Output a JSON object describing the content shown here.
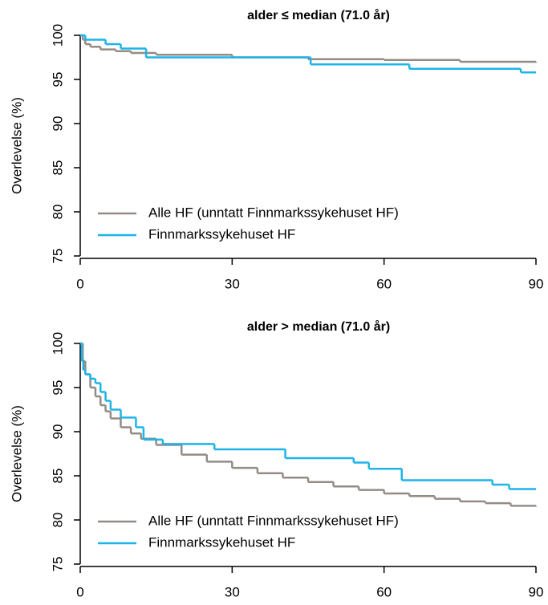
{
  "chart_data": [
    {
      "type": "step",
      "title": "alder ≤ median (71.0 år)",
      "ylabel": "Overlevelse (%)",
      "xlim": [
        0,
        90
      ],
      "xticks": [
        0,
        30,
        60,
        90
      ],
      "ylim": [
        75,
        100
      ],
      "yticks": [
        75,
        80,
        85,
        90,
        95,
        100
      ],
      "legend": "bottom-left",
      "series": [
        {
          "name": "Alle HF (unntatt Finnmarkssykehuset HF)",
          "color": "#958b85",
          "x": [
            0,
            0.5,
            1,
            2,
            4,
            7,
            10,
            15,
            30,
            45,
            60,
            75,
            90
          ],
          "values": [
            100,
            99.5,
            99.0,
            98.7,
            98.4,
            98.2,
            98.0,
            97.8,
            97.5,
            97.3,
            97.2,
            97.0,
            96.9
          ]
        },
        {
          "name": "Finnmarkssykehuset HF",
          "color": "#1db4e8",
          "x": [
            0,
            1,
            5,
            8,
            13,
            45.5,
            65,
            87,
            90
          ],
          "values": [
            100,
            99.5,
            99.0,
            98.5,
            97.5,
            96.7,
            96.2,
            95.8,
            95.8
          ]
        }
      ]
    },
    {
      "type": "step",
      "title": "alder > median (71.0 år)",
      "ylabel": "Overlevelse (%)",
      "xlim": [
        0,
        90
      ],
      "xticks": [
        0,
        30,
        60,
        90
      ],
      "ylim": [
        75,
        100
      ],
      "yticks": [
        75,
        80,
        85,
        90,
        95,
        100
      ],
      "legend": "bottom-left",
      "series": [
        {
          "name": "Alle HF (unntatt Finnmarkssykehuset HF)",
          "color": "#958b85",
          "x": [
            0,
            0.5,
            1,
            2,
            3,
            4,
            5,
            6,
            8,
            10,
            12,
            15,
            20,
            25,
            30,
            35,
            40,
            45,
            50,
            55,
            60,
            65,
            70,
            75,
            80,
            85,
            90
          ],
          "values": [
            100,
            98,
            96.5,
            95,
            94,
            93,
            92.3,
            91.5,
            90.5,
            89.8,
            89.2,
            88.5,
            87.4,
            86.6,
            85.9,
            85.3,
            84.8,
            84.3,
            83.8,
            83.4,
            83.0,
            82.7,
            82.4,
            82.1,
            81.9,
            81.6,
            81.5
          ]
        },
        {
          "name": "Finnmarkssykehuset HF",
          "color": "#1db4e8",
          "x": [
            0,
            0.3,
            0.6,
            1,
            2,
            3,
            4,
            5,
            6,
            8,
            11,
            12.5,
            16.3,
            26.5,
            40.5,
            54,
            57,
            63.5,
            81.4,
            84.7,
            90
          ],
          "values": [
            100,
            98,
            97,
            96.5,
            96,
            95.5,
            94.5,
            93.5,
            92.5,
            91.6,
            90.5,
            89.1,
            88.6,
            88.0,
            87.0,
            86.5,
            85.8,
            84.5,
            84.0,
            83.5,
            83.5
          ]
        }
      ]
    }
  ]
}
